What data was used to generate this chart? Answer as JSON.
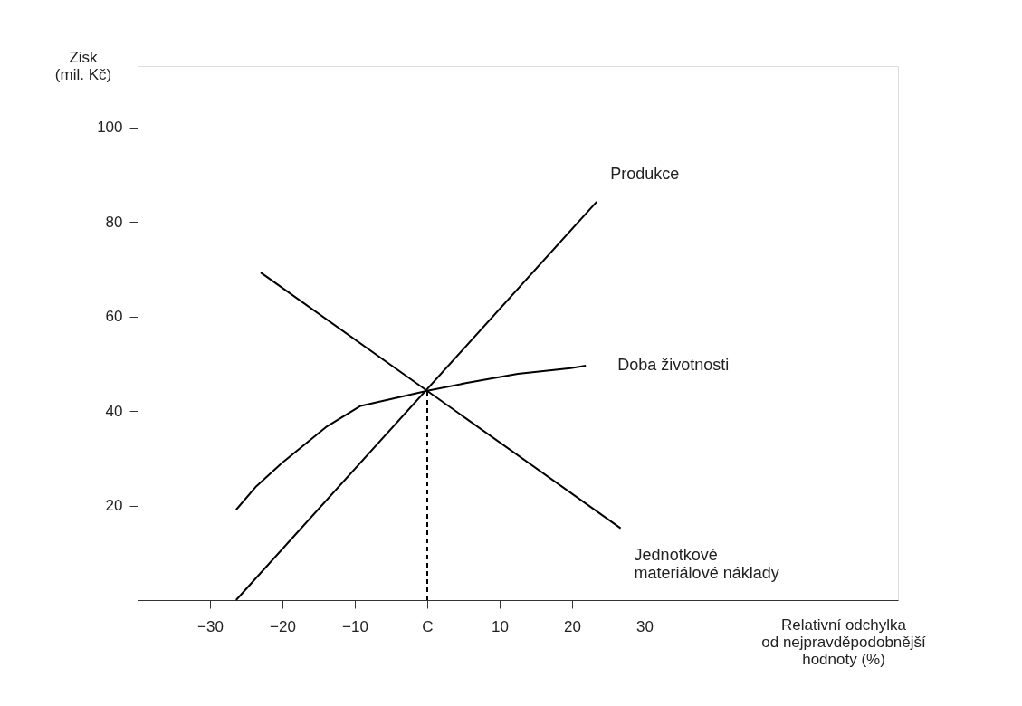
{
  "chart_data": {
    "type": "line",
    "xlabel": "Relativní odchylka\nod nejpravděpodobnější\nhodnoty (%)",
    "ylabel": "Zisk\n(mil. Kč)",
    "xlim": [
      -40,
      65
    ],
    "ylim": [
      0,
      113
    ],
    "xticks": [
      -30,
      -20,
      -10,
      {
        "value": 0,
        "label": "C"
      },
      10,
      20,
      30
    ],
    "yticks": [
      20,
      40,
      60,
      80,
      100
    ],
    "grid": false,
    "legend": false,
    "marker": "none",
    "series": [
      {
        "name": "Produkce",
        "color": "#000000",
        "x": [
          -26.4,
          23.4
        ],
        "values": [
          0,
          84.3
        ]
      },
      {
        "name": "Doba životnosti",
        "color": "#000000",
        "x": [
          -26.4,
          -23.6,
          -20,
          -14,
          -9.2,
          0,
          5.3,
          12.5,
          19.8,
          21.9
        ],
        "values": [
          19.1,
          24.1,
          29.1,
          36.6,
          41.1,
          44.3,
          45.9,
          47.9,
          49.1,
          49.6
        ]
      },
      {
        "name": "Jednotkové\nmateriálové náklady",
        "color": "#000000",
        "x": [
          -23.0,
          26.7
        ],
        "values": [
          69.3,
          15.2
        ]
      },
      {
        "color": "#000000",
        "line_style": "dashed",
        "x": [
          0,
          0
        ],
        "values": [
          0,
          44.3
        ]
      }
    ]
  }
}
